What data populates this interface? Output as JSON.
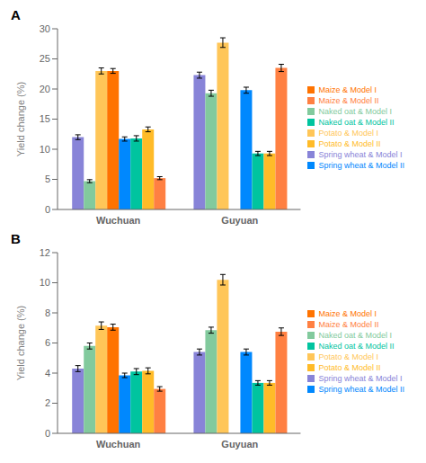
{
  "chart_data": [
    {
      "type": "bar",
      "title": "A",
      "categories": [
        "Wuchuan",
        "Guyuan"
      ],
      "ylabel": "Yield change (%)",
      "ylim": [
        0,
        30
      ],
      "yticks": [
        0,
        5,
        10,
        15,
        20,
        25,
        30
      ],
      "legend": "right",
      "series": [
        {
          "name": "Spring wheat & Model I",
          "color": "#8884d8",
          "values": [
            12.0,
            22.3
          ],
          "errors": [
            0.4,
            0.5
          ]
        },
        {
          "name": "Naked oat & Model I",
          "color": "#82ca9d",
          "values": [
            4.7,
            19.3
          ],
          "errors": [
            0.25,
            0.5
          ]
        },
        {
          "name": "Potato & Model I",
          "color": "#ffc658",
          "values": [
            23.0,
            27.7
          ],
          "errors": [
            0.5,
            0.8
          ]
        },
        {
          "name": "Maize & Model I",
          "color": "#ff7300",
          "values": [
            23.0,
            null
          ],
          "errors": [
            0.4,
            null
          ]
        },
        {
          "name": "Spring wheat & Model II",
          "color": "#0088fe",
          "values": [
            11.7,
            19.8
          ],
          "errors": [
            0.35,
            0.5
          ]
        },
        {
          "name": "Naked oat & Model II",
          "color": "#00c49f",
          "values": [
            11.8,
            9.3
          ],
          "errors": [
            0.45,
            0.35
          ]
        },
        {
          "name": "Potato & Model II",
          "color": "#ffbb28",
          "values": [
            13.3,
            9.3
          ],
          "errors": [
            0.4,
            0.35
          ]
        },
        {
          "name": "Maize & Model II",
          "color": "#ff8042",
          "values": [
            5.2,
            23.5
          ],
          "errors": [
            0.25,
            0.6
          ]
        }
      ]
    },
    {
      "type": "bar",
      "title": "B",
      "categories": [
        "Wuchuan",
        "Guyuan"
      ],
      "ylabel": "Yield change (%)",
      "ylim": [
        0,
        12
      ],
      "yticks": [
        0,
        2,
        4,
        6,
        8,
        10,
        12
      ],
      "legend": "right",
      "series": [
        {
          "name": "Spring wheat & Model I",
          "color": "#8884d8",
          "values": [
            4.3,
            5.4
          ],
          "errors": [
            0.2,
            0.2
          ]
        },
        {
          "name": "Naked oat & Model I",
          "color": "#82ca9d",
          "values": [
            5.8,
            6.85
          ],
          "errors": [
            0.2,
            0.2
          ]
        },
        {
          "name": "Potato & Model I",
          "color": "#ffc658",
          "values": [
            7.15,
            10.2
          ],
          "errors": [
            0.25,
            0.35
          ]
        },
        {
          "name": "Maize & Model I",
          "color": "#ff7300",
          "values": [
            7.05,
            null
          ],
          "errors": [
            0.2,
            null
          ]
        },
        {
          "name": "Spring wheat & Model II",
          "color": "#0088fe",
          "values": [
            3.85,
            5.4
          ],
          "errors": [
            0.15,
            0.2
          ]
        },
        {
          "name": "Naked oat & Model II",
          "color": "#00c49f",
          "values": [
            4.1,
            3.35
          ],
          "errors": [
            0.2,
            0.15
          ]
        },
        {
          "name": "Potato & Model II",
          "color": "#ffbb28",
          "values": [
            4.15,
            3.35
          ],
          "errors": [
            0.2,
            0.15
          ]
        },
        {
          "name": "Maize & Model II",
          "color": "#ff8042",
          "values": [
            2.95,
            6.75
          ],
          "errors": [
            0.15,
            0.25
          ]
        }
      ]
    }
  ]
}
